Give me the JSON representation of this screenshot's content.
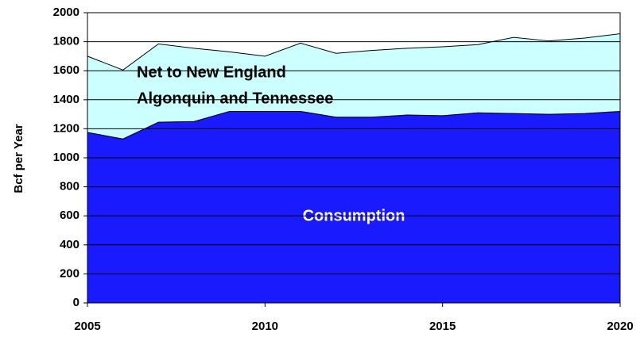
{
  "chart_data": {
    "type": "stacked_area",
    "x": [
      2005,
      2006,
      2007,
      2008,
      2009,
      2010,
      2011,
      2012,
      2013,
      2014,
      2015,
      2016,
      2017,
      2018,
      2019,
      2020
    ],
    "series": [
      {
        "name": "Consumption",
        "color": "#1a1aff",
        "values": [
          1175,
          1130,
          1245,
          1250,
          1320,
          1320,
          1320,
          1280,
          1280,
          1295,
          1290,
          1310,
          1305,
          1300,
          1305,
          1320
        ]
      },
      {
        "name": "Net to New England Algonquin and Tennessee",
        "color": "#ccffff",
        "values": [
          525,
          475,
          540,
          505,
          410,
          380,
          470,
          440,
          460,
          460,
          475,
          470,
          525,
          505,
          520,
          535
        ]
      }
    ],
    "annotations": [
      "Net to New England",
      "Algonquin and Tennessee",
      "Consumption"
    ],
    "ylabel": "Bcf per Year",
    "xlim": [
      2005,
      2020
    ],
    "xticks": [
      2005,
      2010,
      2015,
      2020
    ],
    "ylim": [
      0,
      2000
    ],
    "yticks": [
      0,
      200,
      400,
      600,
      800,
      1000,
      1200,
      1400,
      1600,
      1800,
      2000
    ],
    "grid": true
  }
}
